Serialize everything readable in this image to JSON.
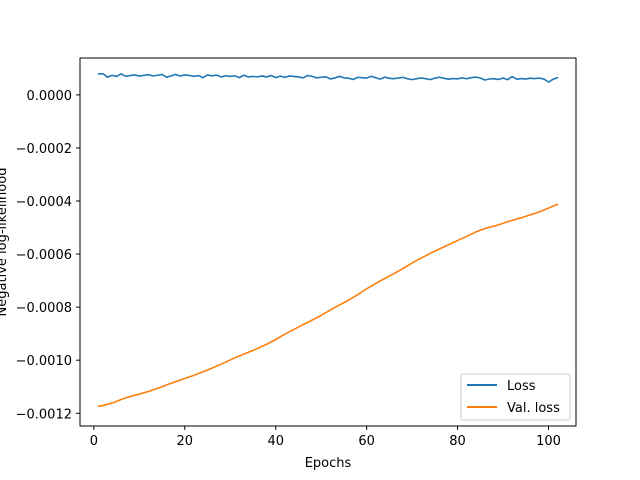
{
  "chart_data": {
    "type": "line",
    "title": "",
    "xlabel": "Epochs",
    "ylabel": "Negative log-likelihood",
    "xlim": [
      -3.05,
      106.05
    ],
    "ylim": [
      -0.001248,
      0.000139
    ],
    "xticks": [
      0,
      20,
      40,
      60,
      80,
      100
    ],
    "yticks": [
      -0.0012,
      -0.001,
      -0.0008,
      -0.0006,
      -0.0004,
      -0.0002,
      0.0
    ],
    "ytick_labels": [
      "−0.0012",
      "−0.0010",
      "−0.0008",
      "−0.0006",
      "−0.0004",
      "−0.0002",
      "0.0000"
    ],
    "grid": false,
    "legend_position": "lower-right",
    "series": [
      {
        "name": "Loss",
        "color": "#1f77b4",
        "x": [
          1,
          2,
          3,
          4,
          5,
          6,
          7,
          8,
          9,
          10,
          11,
          12,
          13,
          14,
          15,
          16,
          17,
          18,
          19,
          20,
          21,
          22,
          23,
          24,
          25,
          26,
          27,
          28,
          29,
          30,
          31,
          32,
          33,
          34,
          35,
          36,
          37,
          38,
          39,
          40,
          41,
          42,
          43,
          44,
          45,
          46,
          47,
          48,
          49,
          50,
          51,
          52,
          53,
          54,
          55,
          56,
          57,
          58,
          59,
          60,
          61,
          62,
          63,
          64,
          65,
          66,
          67,
          68,
          69,
          70,
          71,
          72,
          73,
          74,
          75,
          76,
          77,
          78,
          79,
          80,
          81,
          82,
          83,
          84,
          85,
          86,
          87,
          88,
          89,
          90,
          91,
          92,
          93,
          94,
          95,
          96,
          97,
          98,
          99,
          100,
          101,
          102
        ],
        "values": [
          7.95e-05,
          7.95e-05,
          6.67e-05,
          7.35e-05,
          6.96e-05,
          7.95e-05,
          7.01e-05,
          7.27e-05,
          7.55e-05,
          7.09e-05,
          7.35e-05,
          7.62e-05,
          7.12e-05,
          7.4e-05,
          7.71e-05,
          6.67e-05,
          7.17e-05,
          7.7e-05,
          7.12e-05,
          7.55e-05,
          7.3e-05,
          7e-05,
          7.25e-05,
          6.5e-05,
          7.5e-05,
          7.18e-05,
          7.44e-05,
          6.76e-05,
          7.2e-05,
          6.97e-05,
          7.21e-05,
          6.5e-05,
          7.44e-05,
          6.75e-05,
          6.97e-05,
          6.79e-05,
          7.13e-05,
          6.76e-05,
          7.3e-05,
          6.5e-05,
          7.06e-05,
          6.61e-05,
          7.14e-05,
          6.96e-05,
          6.75e-05,
          6.4e-05,
          7.3e-05,
          6.97e-05,
          6.42e-05,
          6.65e-05,
          6.8e-05,
          6.02e-05,
          6.38e-05,
          7e-05,
          6.45e-05,
          6.3e-05,
          5.78e-05,
          6.6e-05,
          6.49e-05,
          6.34e-05,
          7.04e-05,
          6.47e-05,
          5.95e-05,
          6.68e-05,
          6.25e-05,
          6.09e-05,
          6.36e-05,
          6.6e-05,
          6.08e-05,
          5.75e-05,
          6.09e-05,
          6.36e-05,
          6.1e-05,
          5.75e-05,
          6.3e-05,
          6.65e-05,
          6.25e-05,
          5.91e-05,
          6.15e-05,
          6.05e-05,
          6.38e-05,
          6.08e-05,
          6.48e-05,
          6.7e-05,
          6.36e-05,
          5.6e-05,
          5.98e-05,
          6.11e-05,
          5.81e-05,
          6.38e-05,
          5.72e-05,
          6.9e-05,
          5.92e-05,
          6.15e-05,
          5.95e-05,
          6.3e-05,
          6.12e-05,
          6.33e-05,
          5.97e-05,
          4.85e-05,
          5.88e-05,
          6.52e-05
        ]
      },
      {
        "name": "Val. loss",
        "color": "#ff7f0e",
        "x": [
          1,
          2,
          3,
          4,
          5,
          6,
          7,
          8,
          9,
          10,
          11,
          12,
          13,
          14,
          15,
          16,
          17,
          18,
          19,
          20,
          21,
          22,
          23,
          24,
          25,
          26,
          27,
          28,
          29,
          30,
          31,
          32,
          33,
          34,
          35,
          36,
          37,
          38,
          39,
          40,
          41,
          42,
          43,
          44,
          45,
          46,
          47,
          48,
          49,
          50,
          51,
          52,
          53,
          54,
          55,
          56,
          57,
          58,
          59,
          60,
          61,
          62,
          63,
          64,
          65,
          66,
          67,
          68,
          69,
          70,
          71,
          72,
          73,
          74,
          75,
          76,
          77,
          78,
          79,
          80,
          81,
          82,
          83,
          84,
          85,
          86,
          87,
          88,
          89,
          90,
          91,
          92,
          93,
          94,
          95,
          96,
          97,
          98,
          99,
          100,
          101,
          102
        ],
        "values": [
          -0.001173,
          -0.001171,
          -0.001166,
          -0.001162,
          -0.001155,
          -0.001148,
          -0.001142,
          -0.001137,
          -0.001132,
          -0.001128,
          -0.001123,
          -0.001118,
          -0.001112,
          -0.001106,
          -0.0011,
          -0.001093,
          -0.001087,
          -0.001081,
          -0.001075,
          -0.001069,
          -0.001063,
          -0.001057,
          -0.00105,
          -0.001044,
          -0.001037,
          -0.00103,
          -0.001022,
          -0.001015,
          -0.001007,
          -0.000999,
          -0.000991,
          -0.000984,
          -0.000977,
          -0.00097,
          -0.000963,
          -0.000956,
          -0.000948,
          -0.00094,
          -0.000931,
          -0.000922,
          -0.000912,
          -0.000902,
          -0.000893,
          -0.000884,
          -0.000875,
          -0.000866,
          -0.000858,
          -0.000849,
          -0.00084,
          -0.000831,
          -0.000821,
          -0.000811,
          -0.000801,
          -0.000792,
          -0.000783,
          -0.000774,
          -0.000764,
          -0.000753,
          -0.000742,
          -0.000731,
          -0.000721,
          -0.000711,
          -0.000701,
          -0.000692,
          -0.000683,
          -0.000674,
          -0.000664,
          -0.000654,
          -0.000644,
          -0.000634,
          -0.000624,
          -0.000615,
          -0.000606,
          -0.000597,
          -0.000589,
          -0.000581,
          -0.000573,
          -0.000565,
          -0.000557,
          -0.000549,
          -0.000541,
          -0.000533,
          -0.000525,
          -0.000517,
          -0.00051,
          -0.000504,
          -0.000499,
          -0.000495,
          -0.00049,
          -0.000484,
          -0.000478,
          -0.000473,
          -0.000468,
          -0.000463,
          -0.000458,
          -0.000452,
          -0.000447,
          -0.000441,
          -0.000434,
          -0.000427,
          -0.000419,
          -0.000413
        ]
      }
    ]
  }
}
